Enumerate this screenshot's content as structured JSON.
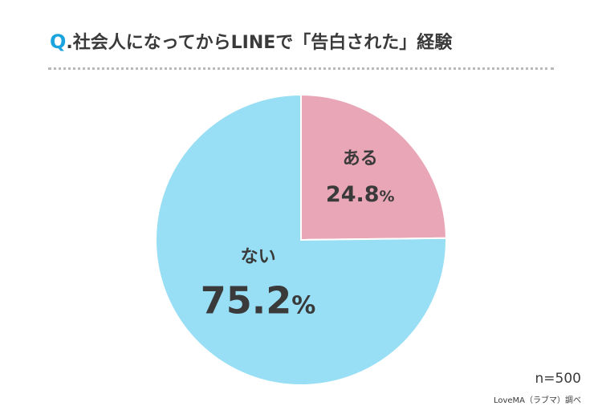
{
  "title": {
    "prefix": "Q",
    "text": ".社会人になってからLINEで「告白された」経験"
  },
  "colors": {
    "accent": "#1aa3dd",
    "slice_yes": "#e8a6b6",
    "slice_no": "#98dff5",
    "divider": "#b9b9b9"
  },
  "chart_data": {
    "type": "pie",
    "slices": [
      {
        "label": "ある",
        "value": 24.8,
        "value_label": "24.8",
        "unit": "%"
      },
      {
        "label": "ない",
        "value": 75.2,
        "value_label": "75.2",
        "unit": "%"
      }
    ]
  },
  "footer": {
    "sample": "n=500",
    "source": "LoveMA（ラブマ）調べ"
  }
}
